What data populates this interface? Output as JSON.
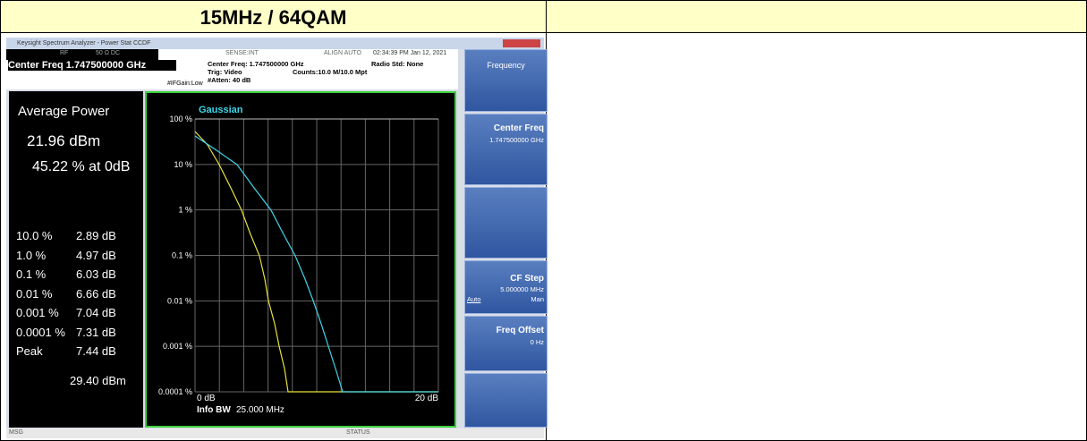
{
  "header": {
    "left": "15MHz / 64QAM"
  },
  "analyzer": {
    "window_title": "Keysight Spectrum Analyzer - Power Stat CCDF",
    "status_top": [
      "RF",
      "50 Ω DC",
      "SENSE:INT",
      "ALIGN AUTO",
      "02:34:39 PM Jan 12, 2021"
    ],
    "center_freq_banner": "Center Freq 1.747500000 GHz",
    "ifgain": "#IFGain:Low",
    "settings": [
      "Center Freq: 1.747500000 GHz",
      "Trig: Video",
      "#Atten: 40 dB",
      "Counts:10.0 M/10.0 Mpt",
      "Radio Std: None"
    ],
    "average_power": {
      "label": "Average Power",
      "dbm": "21.96 dBm",
      "percent": "45.22 % at 0dB"
    },
    "stats": [
      [
        "10.0 %",
        "2.89 dB"
      ],
      [
        "1.0 %",
        "4.97 dB"
      ],
      [
        "0.1 %",
        "6.03 dB"
      ],
      [
        "0.01 %",
        "6.66 dB"
      ],
      [
        "0.001 %",
        "7.04 dB"
      ],
      [
        "0.0001 %",
        "7.31 dB"
      ],
      [
        "Peak",
        "7.44 dB"
      ]
    ],
    "peak_dbm": "29.40 dBm",
    "graph": {
      "trace_label": "Gaussian",
      "y_labels": [
        "100 %",
        "10 %",
        "1 %",
        "0.1 %",
        "0.01 %",
        "0.001 %",
        "0.0001 %"
      ],
      "x_start": "0 dB",
      "x_end": "20 dB",
      "info_bw_label": "Info BW",
      "info_bw_value": "25.000 MHz"
    },
    "softkeys": {
      "menu": "Frequency",
      "center_freq": "Center Freq",
      "center_freq_value": "1.747500000 GHz",
      "cf_step": "CF Step",
      "cf_step_value": "5.000000 MHz",
      "auto": "Auto",
      "man": "Man",
      "freq_offset": "Freq Offset",
      "freq_offset_value": "0 Hz"
    },
    "status_bottom": [
      "MSG",
      "STATUS"
    ]
  }
}
